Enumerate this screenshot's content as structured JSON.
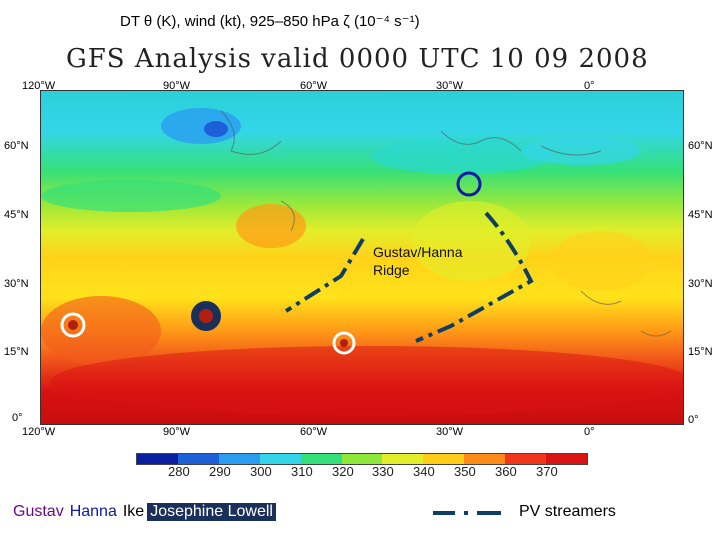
{
  "caption": "DT θ (K), wind (kt), 925–850 hPa ζ (10⁻⁴ s⁻¹)",
  "map_title": "GFS Analysis valid 0000 UTC 10 09 2008",
  "axes": {
    "top_lon": [
      "120°W",
      "90°W",
      "60°W",
      "30°W",
      "0°"
    ],
    "bottom_lon": [
      "120°W",
      "90°W",
      "60°W",
      "30°W",
      "0°"
    ],
    "left_lat": [
      "60°N",
      "45°N",
      "30°N",
      "15°N",
      "0°"
    ],
    "right_lat": [
      "60°N",
      "45°N",
      "30°N",
      "15°N",
      "0°"
    ]
  },
  "map_label": {
    "line1": "Gustav/Hanna",
    "line2": "Ridge"
  },
  "colorbar": {
    "labels": [
      "280",
      "290",
      "300",
      "310",
      "320",
      "330",
      "340",
      "350",
      "360",
      "370"
    ],
    "colors": [
      "#0a1ea0",
      "#1d5fd6",
      "#2a9df0",
      "#33d6e8",
      "#35e07a",
      "#8ee83a",
      "#e2ee2a",
      "#ffcc1a",
      "#ff8a16",
      "#f2361a",
      "#d91212"
    ]
  },
  "legend": {
    "storms": [
      {
        "name": "Gustav",
        "color": "#6a0a8a"
      },
      {
        "name": "Hanna",
        "color": "#0c1aa6"
      },
      {
        "name": "Ike",
        "color": "#000000"
      },
      {
        "name": "Josephine",
        "color": "#ffffff"
      },
      {
        "name": "Lowell",
        "color": "#ffffff"
      }
    ],
    "pv_label": "PV streamers"
  },
  "colors": {
    "hanna_circle": "#0c1aa6",
    "ike_circle": "#1a2f5a",
    "pv_line": "#0e3f62"
  }
}
